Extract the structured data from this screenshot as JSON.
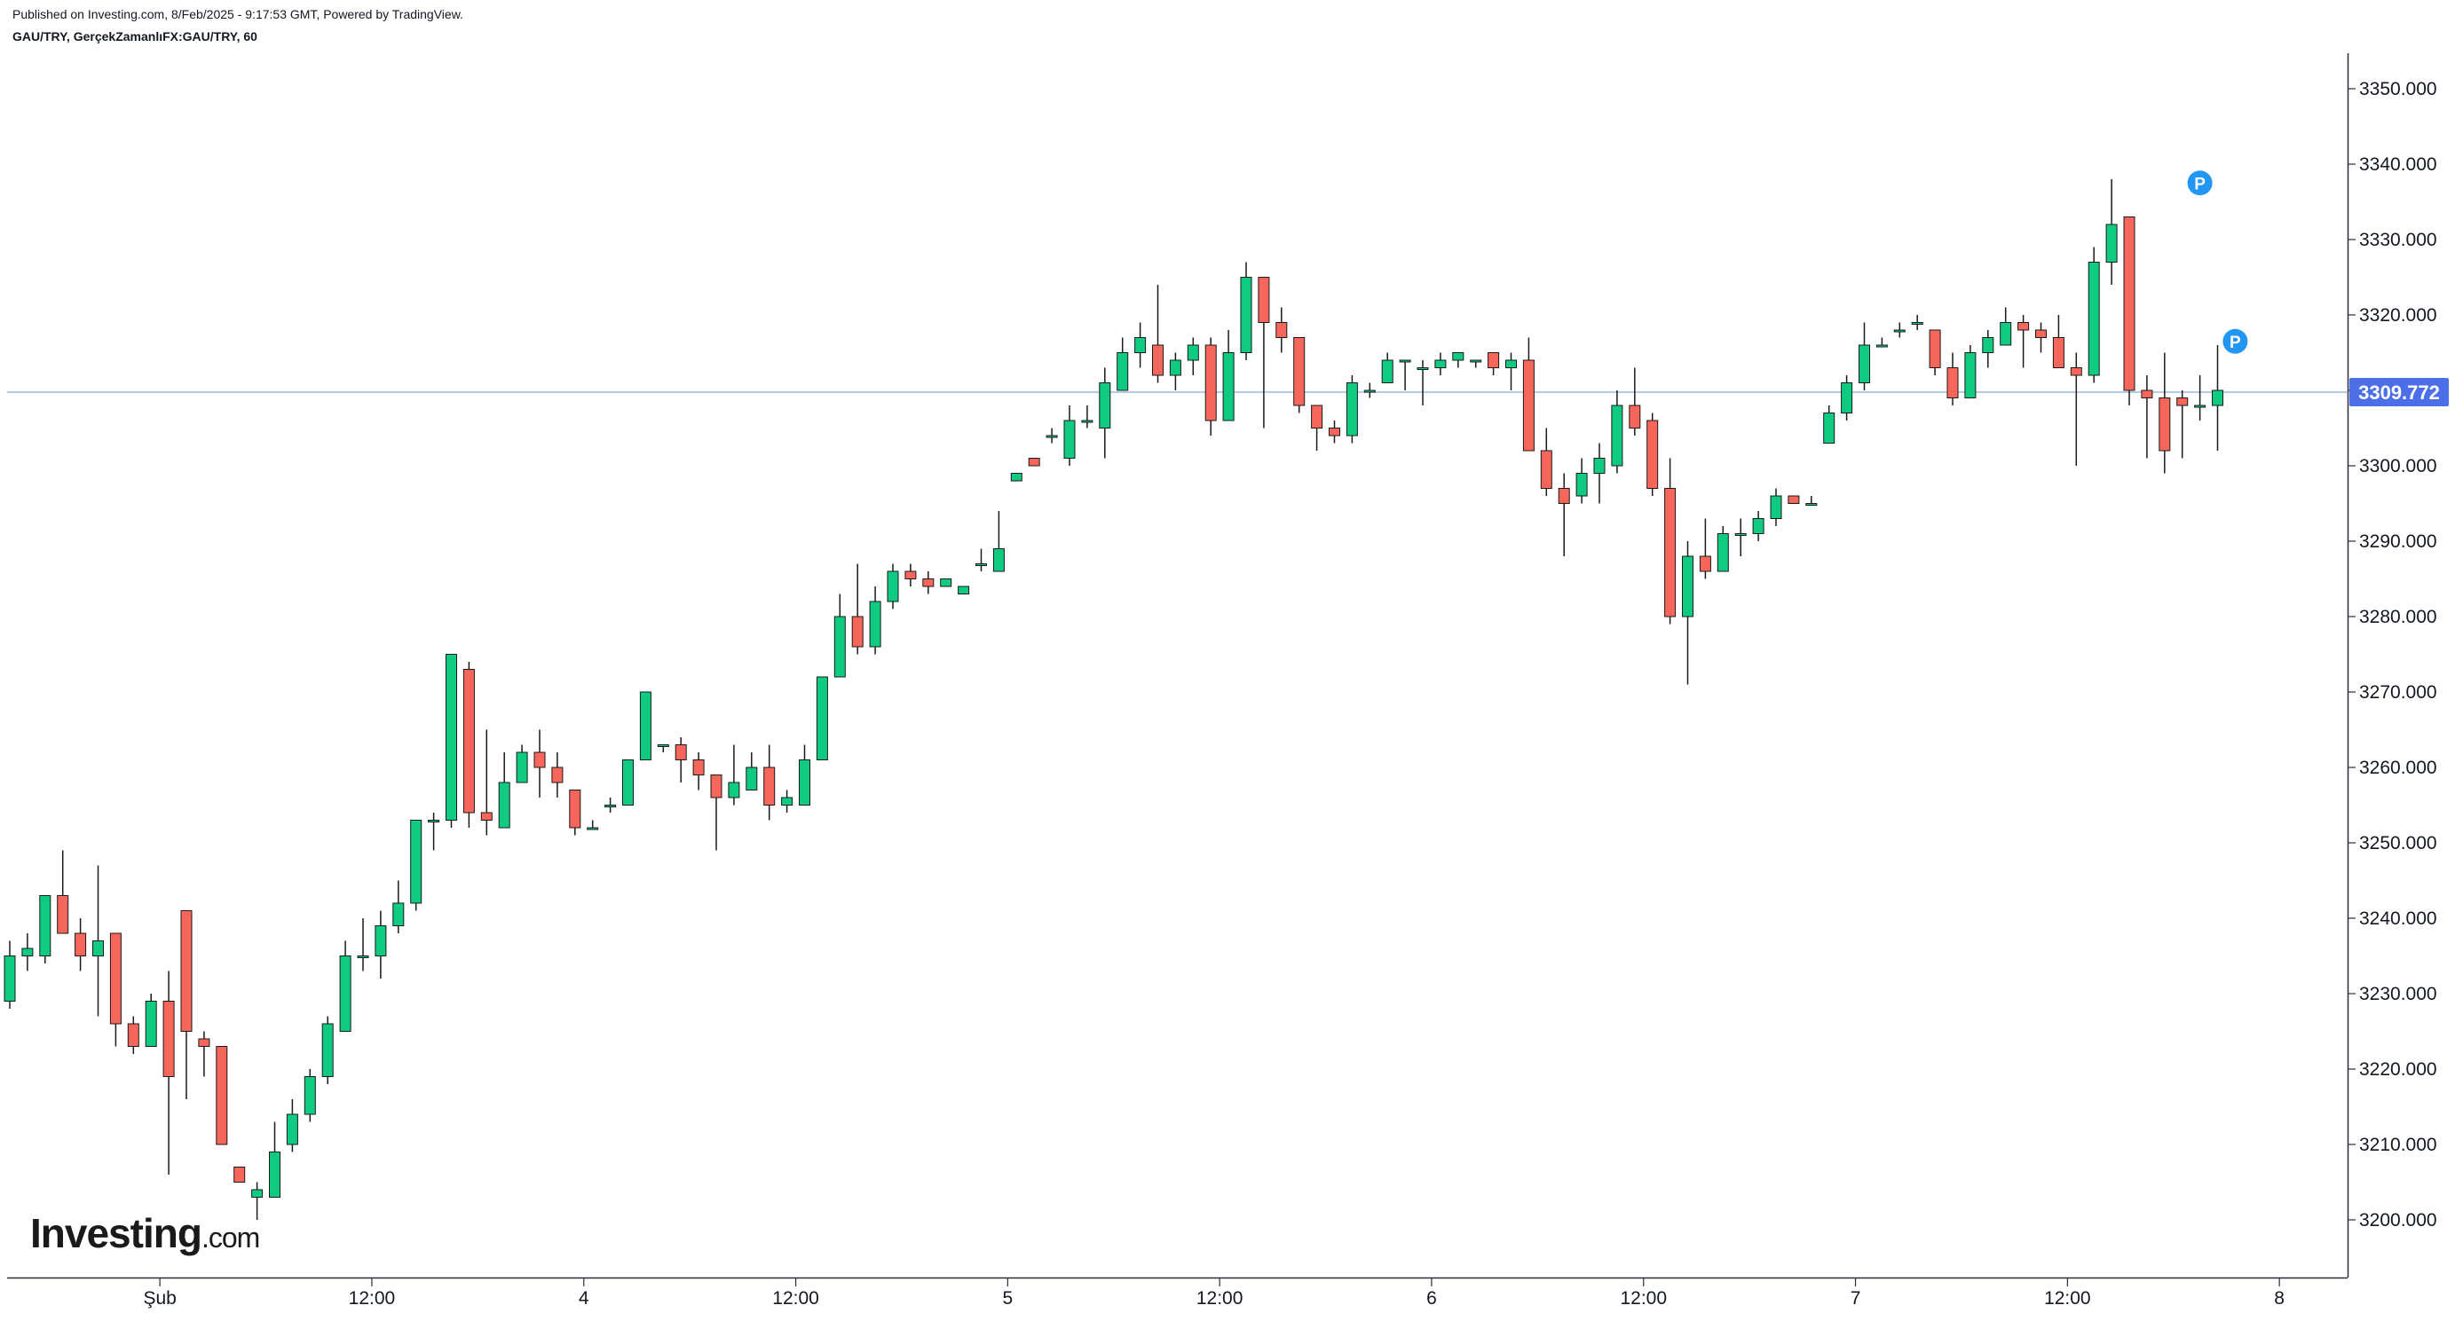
{
  "header": {
    "published": "Published on Investing.com, 8/Feb/2025 - 9:17:53 GMT, Powered by TradingView.",
    "symbol": "GAU/TRY, GerçekZamanlıFX:GAU/TRY, 60"
  },
  "logo": {
    "main": "Investing",
    "suffix": ".com"
  },
  "colors": {
    "up": "#0ecb81",
    "down": "#f6665a",
    "wick": "#1a1a1a",
    "current_line": "#9db8e2",
    "badge": "#4c6fe8",
    "marker": "#2196f3"
  },
  "chart_data": {
    "type": "candlestick",
    "title": "",
    "xlabel": "",
    "ylabel": "",
    "ylim": [
      3192,
      3357
    ],
    "y_ticks": [
      "3350.000",
      "3340.000",
      "3330.000",
      "3320.000",
      "3310.000",
      "3300.000",
      "3290.000",
      "3280.000",
      "3270.000",
      "3260.000",
      "3250.000",
      "3240.000",
      "3230.000",
      "3220.000",
      "3210.000",
      "3200.000"
    ],
    "x_ticks": [
      {
        "label": "Şub",
        "index": 8.5
      },
      {
        "label": "12:00",
        "index": 20.5
      },
      {
        "label": "4",
        "index": 32.5
      },
      {
        "label": "12:00",
        "index": 44.5
      },
      {
        "label": "5",
        "index": 56.5
      },
      {
        "label": "12:00",
        "index": 68.5
      },
      {
        "label": "6",
        "index": 80.5
      },
      {
        "label": "12:00",
        "index": 92.5
      },
      {
        "label": "7",
        "index": 104.5
      },
      {
        "label": "12:00",
        "index": 116.5
      },
      {
        "label": "8",
        "index": 128.5
      }
    ],
    "current_price": "3309.772",
    "current_value": 3309.772,
    "markers": [
      {
        "label": "P",
        "index": 124,
        "value": 3337.5
      },
      {
        "label": "P",
        "index": 126,
        "value": 3316.5
      }
    ],
    "candles": [
      [
        3229,
        3235,
        3228,
        3237
      ],
      [
        3235,
        3236,
        3233,
        3238
      ],
      [
        3235,
        3243,
        3234,
        3243
      ],
      [
        3243,
        3238,
        3238,
        3249
      ],
      [
        3238,
        3235,
        3233,
        3240
      ],
      [
        3235,
        3237,
        3227,
        3247
      ],
      [
        3238,
        3226,
        3223,
        3238
      ],
      [
        3226,
        3223,
        3222,
        3227
      ],
      [
        3223,
        3229,
        3223,
        3230
      ],
      [
        3229,
        3219,
        3206,
        3233
      ],
      [
        3241,
        3225,
        3216,
        3241
      ],
      [
        3224,
        3223,
        3219,
        3225
      ],
      [
        3223,
        3210,
        3210,
        3223
      ],
      [
        3207,
        3205,
        3205,
        3207
      ],
      [
        3203,
        3204,
        3200,
        3205
      ],
      [
        3203,
        3209,
        3203,
        3213
      ],
      [
        3210,
        3214,
        3209,
        3216
      ],
      [
        3214,
        3219,
        3213,
        3220
      ],
      [
        3219,
        3226,
        3218,
        3227
      ],
      [
        3225,
        3235,
        3225,
        3237
      ],
      [
        3235,
        3235,
        3233,
        3240
      ],
      [
        3235,
        3239,
        3232,
        3241
      ],
      [
        3239,
        3242,
        3238,
        3245
      ],
      [
        3242,
        3253,
        3241,
        3253
      ],
      [
        3253,
        3253,
        3249,
        3254
      ],
      [
        3253,
        3275,
        3252,
        3275
      ],
      [
        3273,
        3254,
        3252,
        3274
      ],
      [
        3254,
        3253,
        3251,
        3265
      ],
      [
        3252,
        3258,
        3252,
        3262
      ],
      [
        3258,
        3262,
        3258,
        3263
      ],
      [
        3262,
        3260,
        3256,
        3265
      ],
      [
        3260,
        3258,
        3256,
        3262
      ],
      [
        3257,
        3252,
        3251,
        3257
      ],
      [
        3252,
        3252,
        3252,
        3253
      ],
      [
        3255,
        3255,
        3254,
        3256
      ],
      [
        3255,
        3261,
        3255,
        3261
      ],
      [
        3261,
        3270,
        3261,
        3270
      ],
      [
        3263,
        3263,
        3262,
        3263
      ],
      [
        3263,
        3261,
        3258,
        3264
      ],
      [
        3261,
        3259,
        3257,
        3262
      ],
      [
        3259,
        3256,
        3249,
        3259
      ],
      [
        3256,
        3258,
        3255,
        3263
      ],
      [
        3257,
        3260,
        3257,
        3262
      ],
      [
        3260,
        3255,
        3253,
        3263
      ],
      [
        3255,
        3256,
        3254,
        3257
      ],
      [
        3255,
        3261,
        3255,
        3263
      ],
      [
        3261,
        3272,
        3261,
        3272
      ],
      [
        3272,
        3280,
        3272,
        3283
      ],
      [
        3280,
        3276,
        3275,
        3287
      ],
      [
        3276,
        3282,
        3275,
        3284
      ],
      [
        3282,
        3286,
        3281,
        3287
      ],
      [
        3286,
        3285,
        3284,
        3287
      ],
      [
        3285,
        3284,
        3283,
        3286
      ],
      [
        3284,
        3285,
        3284,
        3285
      ],
      [
        3283,
        3284,
        3283,
        3284
      ],
      [
        3287,
        3287,
        3286,
        3289
      ],
      [
        3286,
        3289,
        3286,
        3294
      ],
      [
        3298,
        3299,
        3298,
        3299
      ],
      [
        3301,
        3300,
        3300,
        3301
      ],
      [
        3304,
        3304,
        3303,
        3305
      ],
      [
        3301,
        3306,
        3300,
        3308
      ],
      [
        3306,
        3306,
        3305,
        3308
      ],
      [
        3305,
        3311,
        3301,
        3313
      ],
      [
        3310,
        3315,
        3310,
        3317
      ],
      [
        3315,
        3317,
        3313,
        3319
      ],
      [
        3316,
        3312,
        3311,
        3324
      ],
      [
        3312,
        3314,
        3310,
        3315
      ],
      [
        3314,
        3316,
        3312,
        3317
      ],
      [
        3316,
        3306,
        3304,
        3317
      ],
      [
        3306,
        3315,
        3306,
        3318
      ],
      [
        3315,
        3325,
        3314,
        3327
      ],
      [
        3325,
        3319,
        3305,
        3325
      ],
      [
        3319,
        3317,
        3315,
        3321
      ],
      [
        3317,
        3308,
        3307,
        3317
      ],
      [
        3308,
        3305,
        3302,
        3308
      ],
      [
        3305,
        3304,
        3303,
        3306
      ],
      [
        3304,
        3311,
        3303,
        3312
      ],
      [
        3310,
        3310,
        3309,
        3311
      ],
      [
        3311,
        3314,
        3311,
        3315
      ],
      [
        3314,
        3314,
        3310,
        3314
      ],
      [
        3313,
        3313,
        3308,
        3314
      ],
      [
        3313,
        3314,
        3312,
        3315
      ],
      [
        3314,
        3315,
        3313,
        3315
      ],
      [
        3314,
        3314,
        3313,
        3314
      ],
      [
        3315,
        3313,
        3312,
        3315
      ],
      [
        3313,
        3314,
        3310,
        3315
      ],
      [
        3314,
        3302,
        3302,
        3317
      ],
      [
        3302,
        3297,
        3296,
        3305
      ],
      [
        3297,
        3295,
        3288,
        3299
      ],
      [
        3296,
        3299,
        3295,
        3301
      ],
      [
        3299,
        3301,
        3295,
        3303
      ],
      [
        3300,
        3308,
        3299,
        3310
      ],
      [
        3308,
        3305,
        3304,
        3313
      ],
      [
        3306,
        3297,
        3296,
        3307
      ],
      [
        3297,
        3280,
        3279,
        3301
      ],
      [
        3280,
        3288,
        3271,
        3290
      ],
      [
        3288,
        3286,
        3285,
        3293
      ],
      [
        3286,
        3291,
        3286,
        3292
      ],
      [
        3291,
        3291,
        3288,
        3293
      ],
      [
        3291,
        3293,
        3290,
        3294
      ],
      [
        3293,
        3296,
        3292,
        3297
      ],
      [
        3296,
        3295,
        3295,
        3296
      ],
      [
        3295,
        3295,
        3295,
        3296
      ],
      [
        3303,
        3307,
        3303,
        3308
      ],
      [
        3307,
        3311,
        3306,
        3312
      ],
      [
        3311,
        3316,
        3310,
        3319
      ],
      [
        3316,
        3316,
        3316,
        3317
      ],
      [
        3318,
        3318,
        3317,
        3319
      ],
      [
        3319,
        3319,
        3318,
        3320
      ],
      [
        3318,
        3313,
        3312,
        3318
      ],
      [
        3313,
        3309,
        3308,
        3315
      ],
      [
        3309,
        3315,
        3309,
        3316
      ],
      [
        3315,
        3317,
        3313,
        3318
      ],
      [
        3316,
        3319,
        3316,
        3321
      ],
      [
        3319,
        3318,
        3313,
        3320
      ],
      [
        3318,
        3317,
        3315,
        3319
      ],
      [
        3317,
        3313,
        3313,
        3320
      ],
      [
        3313,
        3312,
        3300,
        3315
      ],
      [
        3312,
        3327,
        3311,
        3329
      ],
      [
        3327,
        3332,
        3324,
        3338
      ],
      [
        3333,
        3310,
        3308,
        3333
      ],
      [
        3310,
        3309,
        3301,
        3312
      ],
      [
        3309,
        3302,
        3299,
        3315
      ],
      [
        3309,
        3308,
        3301,
        3310
      ],
      [
        3308,
        3308,
        3306,
        3312
      ],
      [
        3308,
        3310,
        3302,
        3316
      ]
    ]
  }
}
